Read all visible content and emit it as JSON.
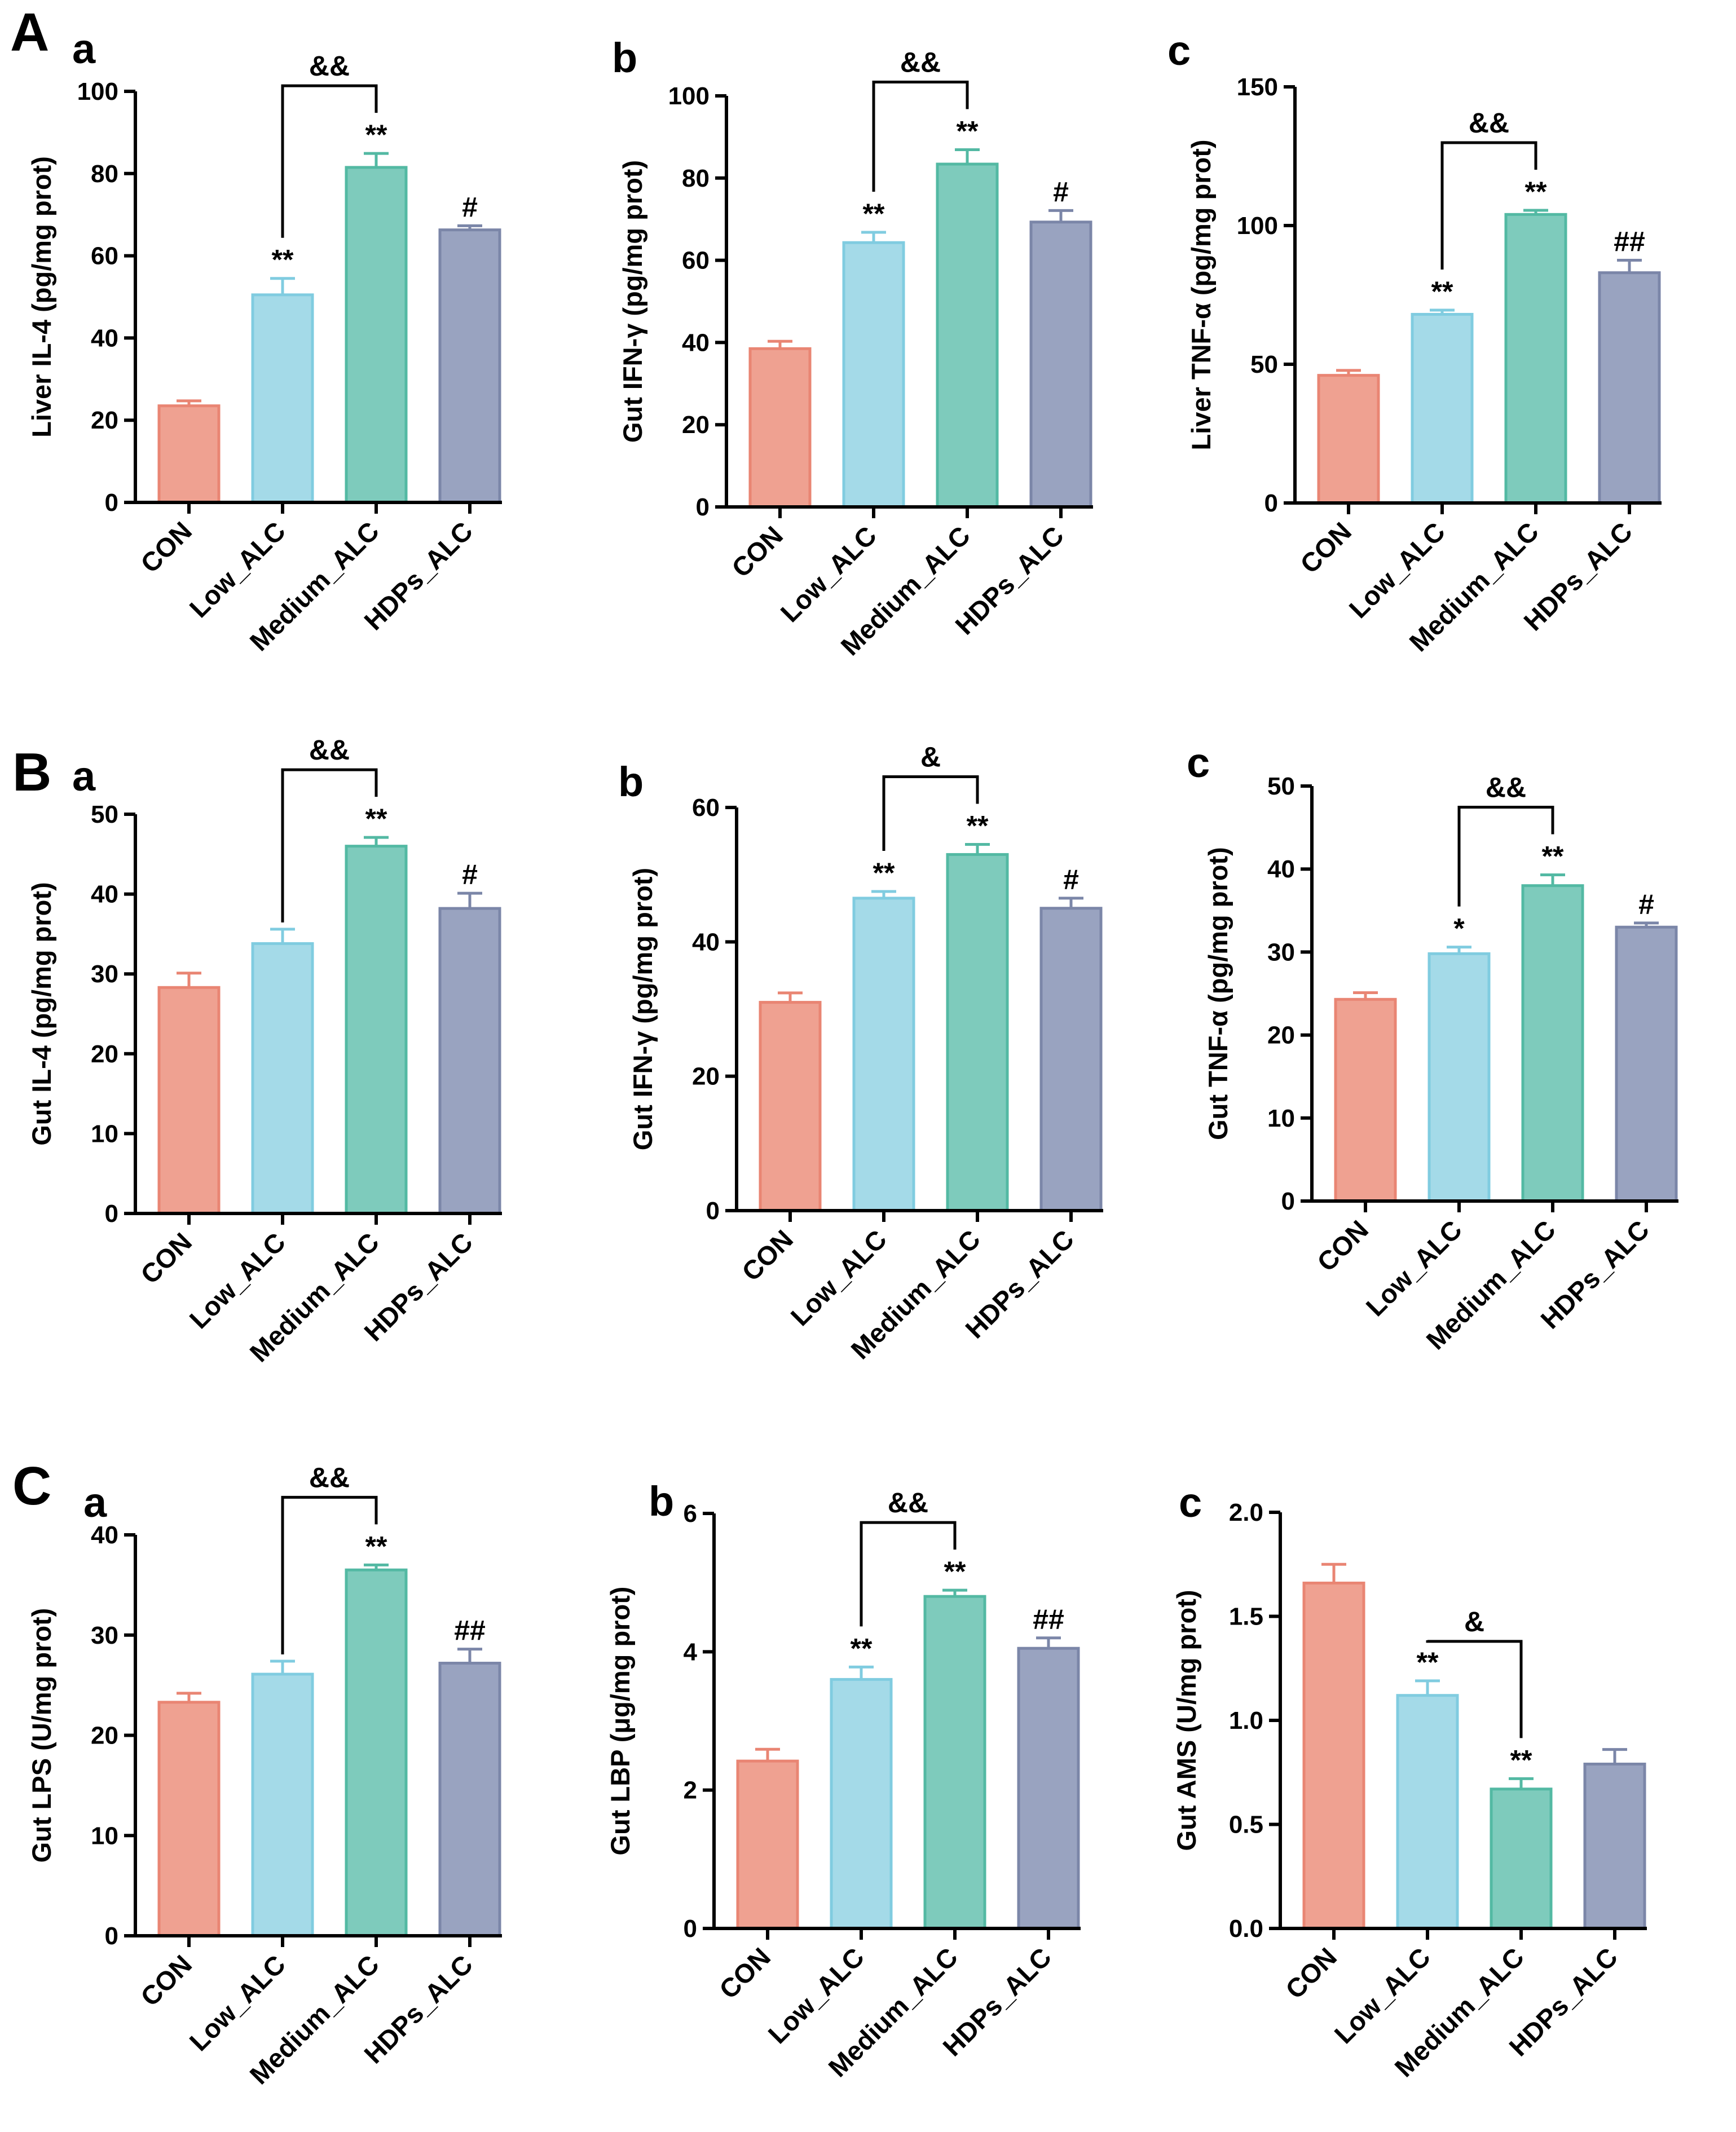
{
  "colors": {
    "CON": {
      "fill": "#efa191",
      "stroke": "#e98573"
    },
    "Low_ALC": {
      "fill": "#a4dae8",
      "stroke": "#80cce0"
    },
    "Medium_ALC": {
      "fill": "#7ecbbc",
      "stroke": "#53b9a3"
    },
    "HDPs_ALC": {
      "fill": "#99a3c0",
      "stroke": "#7b86a8"
    }
  },
  "chart_data": [
    {
      "id": "A-a",
      "panel_letter": "A",
      "sub_label": "a",
      "type": "bar",
      "ylabel": "Liver IL-4 (pg/mg prot)",
      "categories": [
        "CON",
        "Low_ALC",
        "Medium_ALC",
        "HDPs_ALC"
      ],
      "values": [
        23.5,
        50.5,
        81.5,
        66.3
      ],
      "errors": [
        1.2,
        4.0,
        3.4,
        1.0
      ],
      "ylim": [
        0,
        100
      ],
      "yticks": [
        0,
        20,
        40,
        60,
        80,
        100
      ],
      "yticklabels": [
        "0",
        "20",
        "40",
        "60",
        "80",
        "100"
      ],
      "marks": [
        "",
        "**",
        "**",
        "#"
      ],
      "bracket": {
        "from": 1,
        "to": 2,
        "label": "&&"
      }
    },
    {
      "id": "A-b",
      "panel_letter": "",
      "sub_label": "b",
      "type": "bar",
      "ylabel": "Gut IFN-γ (pg/mg prot)",
      "categories": [
        "CON",
        "Low_ALC",
        "Medium_ALC",
        "HDPs_ALC"
      ],
      "values": [
        38.5,
        64.3,
        83.4,
        69.3
      ],
      "errors": [
        1.8,
        2.5,
        3.5,
        2.8
      ],
      "ylim": [
        0,
        100
      ],
      "yticks": [
        0,
        20,
        40,
        60,
        80,
        100
      ],
      "yticklabels": [
        "0",
        "20",
        "40",
        "60",
        "80",
        "100"
      ],
      "marks": [
        "",
        "**",
        "**",
        "#"
      ],
      "bracket": {
        "from": 1,
        "to": 2,
        "label": "&&"
      }
    },
    {
      "id": "A-c",
      "panel_letter": "",
      "sub_label": "c",
      "type": "bar",
      "ylabel": "Liver TNF-α (pg/mg prot)",
      "categories": [
        "CON",
        "Low_ALC",
        "Medium_ALC",
        "HDPs_ALC"
      ],
      "values": [
        46.0,
        68.0,
        104.0,
        83.0
      ],
      "errors": [
        1.8,
        1.5,
        1.5,
        4.5
      ],
      "ylim": [
        0,
        150
      ],
      "yticks": [
        0,
        50,
        100,
        150
      ],
      "yticklabels": [
        "0",
        "50",
        "100",
        "150"
      ],
      "marks": [
        "",
        "**",
        "**",
        "##"
      ],
      "bracket": {
        "from": 1,
        "to": 2,
        "label": "&&"
      }
    },
    {
      "id": "B-a",
      "panel_letter": "B",
      "sub_label": "a",
      "type": "bar",
      "ylabel": "Gut IL-4 (pg/mg prot)",
      "categories": [
        "CON",
        "Low_ALC",
        "Medium_ALC",
        "HDPs_ALC"
      ],
      "values": [
        28.3,
        33.8,
        46.0,
        38.2
      ],
      "errors": [
        1.8,
        1.8,
        1.1,
        1.9
      ],
      "ylim": [
        0,
        50
      ],
      "yticks": [
        0,
        10,
        20,
        30,
        40,
        50
      ],
      "yticklabels": [
        "0",
        "10",
        "20",
        "30",
        "40",
        "50"
      ],
      "marks": [
        "",
        "",
        "**",
        "#"
      ],
      "bracket": {
        "from": 1,
        "to": 2,
        "label": "&&"
      }
    },
    {
      "id": "B-b",
      "panel_letter": "",
      "sub_label": "b",
      "type": "bar",
      "ylabel": "Gut IFN-γ (pg/mg prot)",
      "categories": [
        "CON",
        "Low_ALC",
        "Medium_ALC",
        "HDPs_ALC"
      ],
      "values": [
        31.0,
        46.5,
        53.0,
        45.0
      ],
      "errors": [
        1.4,
        1.0,
        1.5,
        1.5
      ],
      "ylim": [
        0,
        60
      ],
      "yticks": [
        0,
        20,
        40,
        60
      ],
      "yticklabels": [
        "0",
        "20",
        "40",
        "60"
      ],
      "marks": [
        "",
        "**",
        "**",
        "#"
      ],
      "bracket": {
        "from": 1,
        "to": 2,
        "label": "&"
      }
    },
    {
      "id": "B-c",
      "panel_letter": "",
      "sub_label": "c",
      "type": "bar",
      "ylabel": "Gut TNF-α (pg/mg prot)",
      "categories": [
        "CON",
        "Low_ALC",
        "Medium_ALC",
        "HDPs_ALC"
      ],
      "values": [
        24.3,
        29.8,
        38.0,
        33.0
      ],
      "errors": [
        0.8,
        0.8,
        1.3,
        0.5
      ],
      "ylim": [
        0,
        50
      ],
      "yticks": [
        0,
        10,
        20,
        30,
        40,
        50
      ],
      "yticklabels": [
        "0",
        "10",
        "20",
        "30",
        "40",
        "50"
      ],
      "marks": [
        "",
        "*",
        "**",
        "#"
      ],
      "bracket": {
        "from": 1,
        "to": 2,
        "label": "&&"
      }
    },
    {
      "id": "C-a",
      "panel_letter": "C",
      "sub_label": "a",
      "type": "bar",
      "ylabel": "Gut LPS (U/mg prot)",
      "categories": [
        "CON",
        "Low_ALC",
        "Medium_ALC",
        "HDPs_ALC"
      ],
      "values": [
        23.3,
        26.1,
        36.5,
        27.2
      ],
      "errors": [
        0.9,
        1.3,
        0.5,
        1.4
      ],
      "ylim": [
        0,
        40
      ],
      "yticks": [
        0,
        10,
        20,
        30,
        40
      ],
      "yticklabels": [
        "0",
        "10",
        "20",
        "30",
        "40"
      ],
      "marks": [
        "",
        "",
        "**",
        "##"
      ],
      "bracket": {
        "from": 1,
        "to": 2,
        "label": "&&"
      }
    },
    {
      "id": "C-b",
      "panel_letter": "",
      "sub_label": "b",
      "type": "bar",
      "ylabel": "Gut LBP (μg/mg prot)",
      "categories": [
        "CON",
        "Low_ALC",
        "Medium_ALC",
        "HDPs_ALC"
      ],
      "values": [
        2.42,
        3.6,
        4.8,
        4.05
      ],
      "errors": [
        0.17,
        0.18,
        0.09,
        0.15
      ],
      "ylim": [
        0,
        6
      ],
      "yticks": [
        0,
        2,
        4,
        6
      ],
      "yticklabels": [
        "0",
        "2",
        "4",
        "6"
      ],
      "marks": [
        "",
        "**",
        "**",
        "##"
      ],
      "bracket": {
        "from": 1,
        "to": 2,
        "label": "&&"
      }
    },
    {
      "id": "C-c",
      "panel_letter": "",
      "sub_label": "c",
      "type": "bar",
      "ylabel": "Gut AMS (U/mg prot)",
      "categories": [
        "CON",
        "Low_ALC",
        "Medium_ALC",
        "HDPs_ALC"
      ],
      "values": [
        1.66,
        1.12,
        0.67,
        0.79
      ],
      "errors": [
        0.09,
        0.07,
        0.05,
        0.07
      ],
      "ylim": [
        0,
        2.0
      ],
      "yticks": [
        0,
        0.5,
        1.0,
        1.5,
        2.0
      ],
      "yticklabels": [
        "0.0",
        "0.5",
        "1.0",
        "1.5",
        "2.0"
      ],
      "marks": [
        "",
        "**",
        "**",
        ""
      ],
      "bracket": {
        "from": 1,
        "to": 2,
        "label": "&"
      }
    }
  ]
}
